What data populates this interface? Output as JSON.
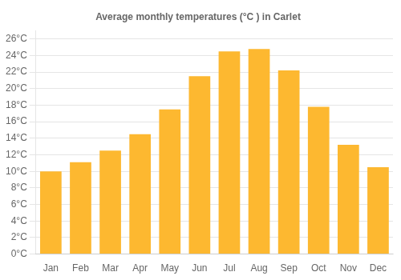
{
  "chart_data": {
    "type": "bar",
    "title": "Average monthly temperatures (°C ) in Carlet",
    "categories": [
      "Jan",
      "Feb",
      "Mar",
      "Apr",
      "May",
      "Jun",
      "Jul",
      "Aug",
      "Sep",
      "Oct",
      "Nov",
      "Dec"
    ],
    "values": [
      10.0,
      11.1,
      12.5,
      14.5,
      17.5,
      21.5,
      24.5,
      24.8,
      22.2,
      17.8,
      13.2,
      10.5
    ],
    "color": "#FDB830",
    "ylim": [
      0,
      27
    ],
    "yticks": [
      {
        "value": 0,
        "label": "0°C"
      },
      {
        "value": 2,
        "label": "2°C"
      },
      {
        "value": 4,
        "label": "4°C"
      },
      {
        "value": 6,
        "label": "6°C"
      },
      {
        "value": 8,
        "label": "8°C"
      },
      {
        "value": 10,
        "label": "10°C"
      },
      {
        "value": 12,
        "label": "12°C"
      },
      {
        "value": 14,
        "label": "14°C"
      },
      {
        "value": 16,
        "label": "16°C"
      },
      {
        "value": 18,
        "label": "18°C"
      },
      {
        "value": 20,
        "label": "20°C"
      },
      {
        "value": 22,
        "label": "22°C"
      },
      {
        "value": 24,
        "label": "24°C"
      },
      {
        "value": 26,
        "label": "26°C"
      }
    ],
    "grid": true
  }
}
